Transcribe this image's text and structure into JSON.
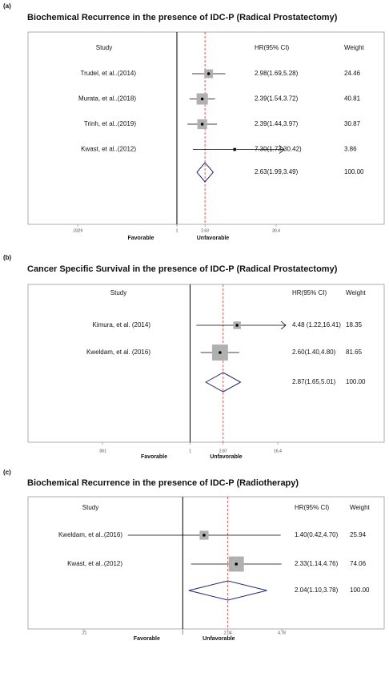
{
  "chart_data": [
    {
      "type": "forest",
      "panel": "(a)",
      "title": "Biochemical Recurrence  in the presence of IDC-P (Radical Prostatectomy)",
      "study_header": "Study",
      "hr_header": "HR(95% CI)",
      "weight_header": "Weight",
      "studies": [
        "Trudel, et al..(2014)",
        "Murata, et al..(2018)",
        "Trinh, et al..(2019)",
        "Kwast, et al..(2012)"
      ],
      "hr": [
        2.98,
        2.39,
        2.39,
        7.3
      ],
      "ci_low": [
        1.69,
        1.54,
        1.44,
        1.73
      ],
      "ci_high": [
        5.28,
        3.72,
        3.97,
        30.42
      ],
      "value_labels": [
        "2.98(1.69,5.28)",
        "2.39(1.54,3.72)",
        "2.39(1.44,3.97)",
        "7.30(1.73,30.42)"
      ],
      "weights": [
        24.46,
        40.81,
        30.87,
        3.86
      ],
      "pooled": {
        "hr": 2.63,
        "ci_low": 1.99,
        "ci_high": 3.49,
        "value_label": "2.63(1.99,3.49)",
        "weight_label": "100.00"
      },
      "xlim": [
        0.0329,
        30.4
      ],
      "xticks": [
        {
          "value": 0.0329,
          "label": ".0329"
        },
        1,
        2.63,
        30.4
      ],
      "log_x": true,
      "left_label": "Favorable",
      "right_label": "Unfavorable",
      "box_color": "#b0b0b0",
      "line_color": "#000000",
      "diamond_color": "#1f2a80",
      "ref_line_color": "#c0392b"
    },
    {
      "type": "forest",
      "panel": "(b)",
      "title": "Cancer Specific Survival in the presence of IDC-P (Radical Prostatectomy)",
      "study_header": "Study",
      "hr_header": "HR(95% CI)",
      "weight_header": "Weight",
      "studies": [
        "Kimura, et al. (2014)",
        "Kweldam, et al. (2016)"
      ],
      "hr": [
        4.48,
        2.6
      ],
      "ci_low": [
        1.22,
        1.4
      ],
      "ci_high": [
        16.41,
        4.8
      ],
      "value_labels": [
        "4.48 (1.22,16.41)",
        "2.60(1.40,4.80)"
      ],
      "weights": [
        18.35,
        81.65
      ],
      "pooled": {
        "hr": 2.87,
        "ci_low": 1.65,
        "ci_high": 5.01,
        "value_label": "2.87(1.65,5.01)",
        "weight_label": "100.00"
      },
      "xlim": [
        0.061,
        16.4
      ],
      "xticks": [
        {
          "value": 0.061,
          "label": ".061"
        },
        1,
        2.87,
        16.4
      ],
      "log_x": true,
      "left_label": "Favorable",
      "right_label": "Unfavorable",
      "box_color": "#b0b0b0",
      "line_color": "#000000",
      "diamond_color": "#1f2a80",
      "ref_line_color": "#c0392b"
    },
    {
      "type": "forest",
      "panel": "(c)",
      "title": "Biochemical Recurrence in the presence of IDC-P (Radiotherapy)",
      "study_header": "Study",
      "hr_header": "HR(95% CI)",
      "weight_header": "Weight",
      "studies": [
        "Kweldam, et al..(2016)",
        "Kwast, et al..(2012)"
      ],
      "hr": [
        1.4,
        2.33
      ],
      "ci_low": [
        0.42,
        1.14
      ],
      "ci_high": [
        4.7,
        4.76
      ],
      "value_labels": [
        "1.40(0.42,4.70)",
        "2.33(1.14,4.76)"
      ],
      "weights": [
        25.94,
        74.06
      ],
      "pooled": {
        "hr": 2.04,
        "ci_low": 1.1,
        "ci_high": 3.78,
        "value_label": "2.04(1.10,3.78)",
        "weight_label": "100.00"
      },
      "xlim": [
        0.21,
        4.78
      ],
      "xticks": [
        {
          "value": 0.21,
          "label": ".21"
        },
        1,
        2.04,
        4.78
      ],
      "log_x": true,
      "left_label": "Favorable",
      "right_label": "Unfavorable",
      "box_color": "#b0b0b0",
      "line_color": "#000000",
      "diamond_color": "#1f2a80",
      "ref_line_color": "#c0392b"
    }
  ]
}
